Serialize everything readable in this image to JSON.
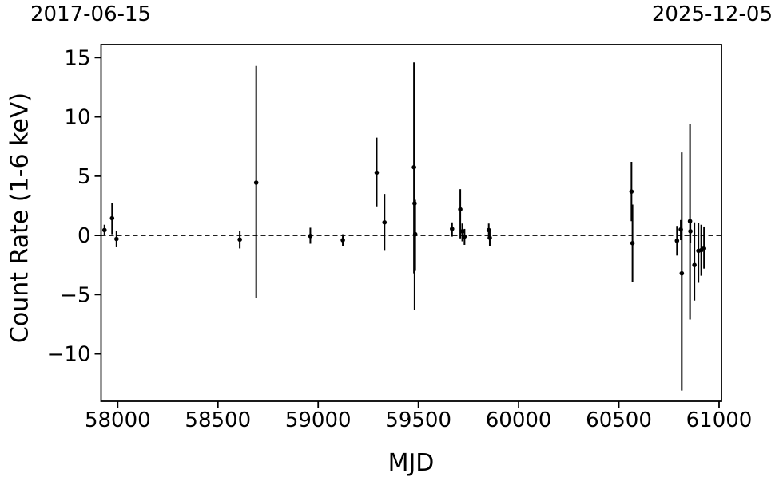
{
  "figure": {
    "top_left_date": "2017-06-15",
    "top_right_date": "2025-12-05",
    "background_color": "#ffffff",
    "foreground_color": "#000000"
  },
  "chart_data": {
    "type": "scatter",
    "title": "",
    "xlabel": "MJD",
    "ylabel": "Count Rate (1-6 keV)",
    "xlim": [
      57917,
      61012
    ],
    "ylim": [
      -14.0,
      16.1
    ],
    "xticks": [
      58000,
      58500,
      59000,
      59500,
      60000,
      60500,
      61000
    ],
    "xtick_labels": [
      "58000",
      "58500",
      "59000",
      "59500",
      "60000",
      "60500",
      "61000"
    ],
    "yticks": [
      15,
      10,
      5,
      0,
      -5,
      -10
    ],
    "ytick_labels": [
      "15",
      "10",
      "5",
      "0",
      "−5",
      "−10"
    ],
    "grid": false,
    "legend_position": "none",
    "marker_color": "#000000",
    "errorbar_color": "#000000",
    "zero_line": {
      "y": 0,
      "style": "dashed",
      "color": "#000000"
    },
    "point_format": [
      "mjd",
      "y",
      "err_lo_abs",
      "err_hi_abs"
    ],
    "series": [
      {
        "name": "count-rate-1-6-keV",
        "points": [
          [
            57934,
            0.45,
            0.0,
            0.9
          ],
          [
            57972,
            1.45,
            0.1,
            2.75
          ],
          [
            57994,
            -0.3,
            -1.0,
            0.35
          ],
          [
            58609,
            -0.35,
            -1.1,
            0.35
          ],
          [
            58691,
            4.45,
            -5.3,
            14.3
          ],
          [
            58961,
            -0.05,
            -0.7,
            0.65
          ],
          [
            59123,
            -0.4,
            -0.9,
            0.1
          ],
          [
            59292,
            5.3,
            2.45,
            8.25
          ],
          [
            59331,
            1.1,
            -1.3,
            3.5
          ],
          [
            59478,
            5.75,
            -3.2,
            14.6
          ],
          [
            59481,
            2.7,
            -6.3,
            11.7
          ],
          [
            59484,
            0.1,
            -3.0,
            3.0
          ],
          [
            59668,
            0.55,
            -0.1,
            1.1
          ],
          [
            59709,
            2.2,
            -0.25,
            3.9
          ],
          [
            59719,
            0.35,
            -0.5,
            1.0
          ],
          [
            59730,
            -0.1,
            -0.8,
            0.55
          ],
          [
            59851,
            0.45,
            -0.1,
            1.0
          ],
          [
            59856,
            -0.2,
            -0.9,
            0.5
          ],
          [
            60563,
            3.7,
            1.2,
            6.2
          ],
          [
            60568,
            -0.65,
            -3.9,
            2.6
          ],
          [
            60790,
            -0.45,
            -1.7,
            0.8
          ],
          [
            60809,
            0.5,
            -0.4,
            1.3
          ],
          [
            60814,
            -3.2,
            -13.1,
            7.0
          ],
          [
            60855,
            1.2,
            -7.1,
            9.4
          ],
          [
            60857,
            0.35,
            -0.6,
            1.3
          ],
          [
            60877,
            -2.5,
            -5.5,
            1.1
          ],
          [
            60897,
            -1.3,
            -4.0,
            1.05
          ],
          [
            60911,
            -1.25,
            -3.4,
            0.9
          ],
          [
            60925,
            -1.1,
            -2.8,
            0.75
          ]
        ]
      }
    ]
  }
}
